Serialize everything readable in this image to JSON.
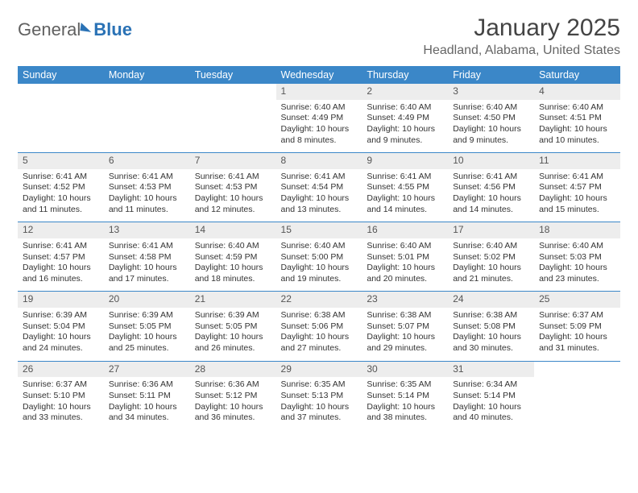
{
  "brand": {
    "part1": "General",
    "part2": "Blue"
  },
  "title": "January 2025",
  "location": "Headland, Alabama, United States",
  "colors": {
    "header_bg": "#3b87c8",
    "header_text": "#ffffff",
    "daynum_bg": "#ededed",
    "separator": "#3b87c8",
    "text": "#333333",
    "brand_grey": "#606060",
    "brand_blue": "#2a72b5"
  },
  "day_labels": [
    "Sunday",
    "Monday",
    "Tuesday",
    "Wednesday",
    "Thursday",
    "Friday",
    "Saturday"
  ],
  "weeks": [
    [
      {
        "num": "",
        "sunrise": "",
        "sunset": "",
        "daylight": ""
      },
      {
        "num": "",
        "sunrise": "",
        "sunset": "",
        "daylight": ""
      },
      {
        "num": "",
        "sunrise": "",
        "sunset": "",
        "daylight": ""
      },
      {
        "num": "1",
        "sunrise": "Sunrise: 6:40 AM",
        "sunset": "Sunset: 4:49 PM",
        "daylight": "Daylight: 10 hours and 8 minutes."
      },
      {
        "num": "2",
        "sunrise": "Sunrise: 6:40 AM",
        "sunset": "Sunset: 4:49 PM",
        "daylight": "Daylight: 10 hours and 9 minutes."
      },
      {
        "num": "3",
        "sunrise": "Sunrise: 6:40 AM",
        "sunset": "Sunset: 4:50 PM",
        "daylight": "Daylight: 10 hours and 9 minutes."
      },
      {
        "num": "4",
        "sunrise": "Sunrise: 6:40 AM",
        "sunset": "Sunset: 4:51 PM",
        "daylight": "Daylight: 10 hours and 10 minutes."
      }
    ],
    [
      {
        "num": "5",
        "sunrise": "Sunrise: 6:41 AM",
        "sunset": "Sunset: 4:52 PM",
        "daylight": "Daylight: 10 hours and 11 minutes."
      },
      {
        "num": "6",
        "sunrise": "Sunrise: 6:41 AM",
        "sunset": "Sunset: 4:53 PM",
        "daylight": "Daylight: 10 hours and 11 minutes."
      },
      {
        "num": "7",
        "sunrise": "Sunrise: 6:41 AM",
        "sunset": "Sunset: 4:53 PM",
        "daylight": "Daylight: 10 hours and 12 minutes."
      },
      {
        "num": "8",
        "sunrise": "Sunrise: 6:41 AM",
        "sunset": "Sunset: 4:54 PM",
        "daylight": "Daylight: 10 hours and 13 minutes."
      },
      {
        "num": "9",
        "sunrise": "Sunrise: 6:41 AM",
        "sunset": "Sunset: 4:55 PM",
        "daylight": "Daylight: 10 hours and 14 minutes."
      },
      {
        "num": "10",
        "sunrise": "Sunrise: 6:41 AM",
        "sunset": "Sunset: 4:56 PM",
        "daylight": "Daylight: 10 hours and 14 minutes."
      },
      {
        "num": "11",
        "sunrise": "Sunrise: 6:41 AM",
        "sunset": "Sunset: 4:57 PM",
        "daylight": "Daylight: 10 hours and 15 minutes."
      }
    ],
    [
      {
        "num": "12",
        "sunrise": "Sunrise: 6:41 AM",
        "sunset": "Sunset: 4:57 PM",
        "daylight": "Daylight: 10 hours and 16 minutes."
      },
      {
        "num": "13",
        "sunrise": "Sunrise: 6:41 AM",
        "sunset": "Sunset: 4:58 PM",
        "daylight": "Daylight: 10 hours and 17 minutes."
      },
      {
        "num": "14",
        "sunrise": "Sunrise: 6:40 AM",
        "sunset": "Sunset: 4:59 PM",
        "daylight": "Daylight: 10 hours and 18 minutes."
      },
      {
        "num": "15",
        "sunrise": "Sunrise: 6:40 AM",
        "sunset": "Sunset: 5:00 PM",
        "daylight": "Daylight: 10 hours and 19 minutes."
      },
      {
        "num": "16",
        "sunrise": "Sunrise: 6:40 AM",
        "sunset": "Sunset: 5:01 PM",
        "daylight": "Daylight: 10 hours and 20 minutes."
      },
      {
        "num": "17",
        "sunrise": "Sunrise: 6:40 AM",
        "sunset": "Sunset: 5:02 PM",
        "daylight": "Daylight: 10 hours and 21 minutes."
      },
      {
        "num": "18",
        "sunrise": "Sunrise: 6:40 AM",
        "sunset": "Sunset: 5:03 PM",
        "daylight": "Daylight: 10 hours and 23 minutes."
      }
    ],
    [
      {
        "num": "19",
        "sunrise": "Sunrise: 6:39 AM",
        "sunset": "Sunset: 5:04 PM",
        "daylight": "Daylight: 10 hours and 24 minutes."
      },
      {
        "num": "20",
        "sunrise": "Sunrise: 6:39 AM",
        "sunset": "Sunset: 5:05 PM",
        "daylight": "Daylight: 10 hours and 25 minutes."
      },
      {
        "num": "21",
        "sunrise": "Sunrise: 6:39 AM",
        "sunset": "Sunset: 5:05 PM",
        "daylight": "Daylight: 10 hours and 26 minutes."
      },
      {
        "num": "22",
        "sunrise": "Sunrise: 6:38 AM",
        "sunset": "Sunset: 5:06 PM",
        "daylight": "Daylight: 10 hours and 27 minutes."
      },
      {
        "num": "23",
        "sunrise": "Sunrise: 6:38 AM",
        "sunset": "Sunset: 5:07 PM",
        "daylight": "Daylight: 10 hours and 29 minutes."
      },
      {
        "num": "24",
        "sunrise": "Sunrise: 6:38 AM",
        "sunset": "Sunset: 5:08 PM",
        "daylight": "Daylight: 10 hours and 30 minutes."
      },
      {
        "num": "25",
        "sunrise": "Sunrise: 6:37 AM",
        "sunset": "Sunset: 5:09 PM",
        "daylight": "Daylight: 10 hours and 31 minutes."
      }
    ],
    [
      {
        "num": "26",
        "sunrise": "Sunrise: 6:37 AM",
        "sunset": "Sunset: 5:10 PM",
        "daylight": "Daylight: 10 hours and 33 minutes."
      },
      {
        "num": "27",
        "sunrise": "Sunrise: 6:36 AM",
        "sunset": "Sunset: 5:11 PM",
        "daylight": "Daylight: 10 hours and 34 minutes."
      },
      {
        "num": "28",
        "sunrise": "Sunrise: 6:36 AM",
        "sunset": "Sunset: 5:12 PM",
        "daylight": "Daylight: 10 hours and 36 minutes."
      },
      {
        "num": "29",
        "sunrise": "Sunrise: 6:35 AM",
        "sunset": "Sunset: 5:13 PM",
        "daylight": "Daylight: 10 hours and 37 minutes."
      },
      {
        "num": "30",
        "sunrise": "Sunrise: 6:35 AM",
        "sunset": "Sunset: 5:14 PM",
        "daylight": "Daylight: 10 hours and 38 minutes."
      },
      {
        "num": "31",
        "sunrise": "Sunrise: 6:34 AM",
        "sunset": "Sunset: 5:14 PM",
        "daylight": "Daylight: 10 hours and 40 minutes."
      },
      {
        "num": "",
        "sunrise": "",
        "sunset": "",
        "daylight": ""
      }
    ]
  ]
}
